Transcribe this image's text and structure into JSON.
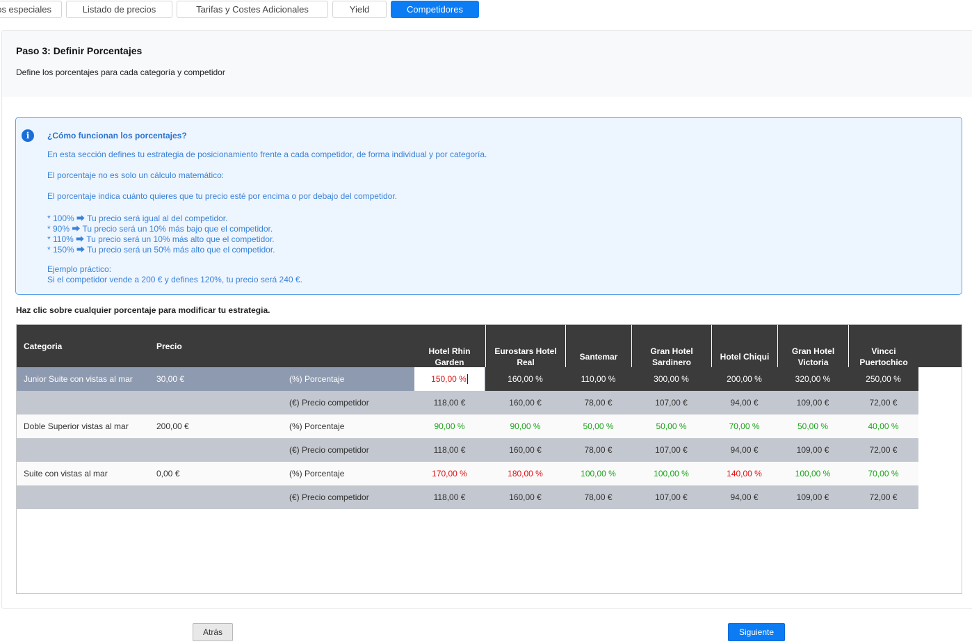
{
  "tabs": [
    {
      "label": "os especiales"
    },
    {
      "label": "Listado de precios"
    },
    {
      "label": "Tarifas y  Costes Adicionales"
    },
    {
      "label": "Yield"
    },
    {
      "label": "Competidores"
    }
  ],
  "step": {
    "title": "Paso 3: Definir Porcentajes",
    "subtitle": "Define los porcentajes para cada categoría y competidor"
  },
  "info": {
    "icon": "info-icon",
    "title": "¿Cómo funcionan los porcentajes?",
    "lines": [
      "En esta sección defines tu estrategia de posicionamiento frente a cada competidor, de forma individual y por categoría.",
      "El porcentaje no es solo un cálculo matemático:",
      "El porcentaje indica cuánto quieres que tu precio esté por encima o por debajo del competidor.",
      "* 100% ⮕ Tu precio será igual al del competidor.",
      "* 90% ⮕ Tu precio será un 10% más bajo que el competidor.",
      "* 110% ⮕ Tu precio será un 10% más alto que el competidor.",
      "* 150% ⮕ Tu precio será un 50% más alto que el competidor.",
      "Ejemplo práctico:",
      "Si el competidor vende a 200 € y defines 120%, tu precio será 240 €."
    ]
  },
  "hint": "Haz clic sobre cualquier porcentaje para modificar tu estrategia.",
  "table": {
    "headers": {
      "category": "Categoria",
      "price": "Precio"
    },
    "competitors": [
      {
        "l1": "Hotel Rhin",
        "l2": "Garden"
      },
      {
        "l1": "Eurostars Hotel",
        "l2": "Real"
      },
      {
        "l1": "Santemar",
        "l2": ""
      },
      {
        "l1": "Gran Hotel",
        "l2": "Sardinero"
      },
      {
        "l1": "Hotel Chiqui",
        "l2": ""
      },
      {
        "l1": "Gran Hotel",
        "l2": "Victoria"
      },
      {
        "l1": "Vincci",
        "l2": "Puertochico"
      }
    ],
    "rows": [
      {
        "category": "Junior Suite con vistas al mar",
        "price": "30,00 €",
        "pct_label": "(%) Porcentaje",
        "pct": [
          "150,00 %",
          "160,00 %",
          "110,00 %",
          "300,00 %",
          "200,00 %",
          "320,00 %",
          "250,00 %"
        ],
        "pct_colors": [
          "red",
          "white",
          "white",
          "white",
          "white",
          "white",
          "white"
        ],
        "comp_label": "(€) Precio competidor",
        "comp": [
          "118,00 €",
          "160,00 €",
          "78,00 €",
          "107,00 €",
          "94,00 €",
          "109,00 €",
          "72,00 €"
        ]
      },
      {
        "category": "Doble Superior vistas al mar",
        "price": "200,00 €",
        "pct_label": "(%) Porcentaje",
        "pct": [
          "90,00 %",
          "90,00 %",
          "50,00 %",
          "50,00 %",
          "70,00 %",
          "50,00 %",
          "40,00 %"
        ],
        "pct_colors": [
          "green",
          "green",
          "green",
          "green",
          "green",
          "green",
          "green"
        ],
        "comp_label": "(€) Precio competidor",
        "comp": [
          "118,00 €",
          "160,00 €",
          "78,00 €",
          "107,00 €",
          "94,00 €",
          "109,00 €",
          "72,00 €"
        ]
      },
      {
        "category": "Suite con vistas al mar",
        "price": "0,00 €",
        "pct_label": "(%) Porcentaje",
        "pct": [
          "170,00 %",
          "180,00 %",
          "100,00 %",
          "100,00 %",
          "140,00 %",
          "100,00 %",
          "70,00 %"
        ],
        "pct_colors": [
          "red",
          "red",
          "green",
          "green",
          "red",
          "green",
          "green"
        ],
        "comp_label": "(€) Precio competidor",
        "comp": [
          "118,00 €",
          "160,00 €",
          "78,00 €",
          "107,00 €",
          "94,00 €",
          "109,00 €",
          "72,00 €"
        ]
      }
    ]
  },
  "buttons": {
    "back": "Atrás",
    "next": "Siguiente"
  },
  "colors": {
    "accent": "#0b7cf4",
    "header": "#3b3b3b",
    "green": "#19a319",
    "red": "#e01010"
  }
}
